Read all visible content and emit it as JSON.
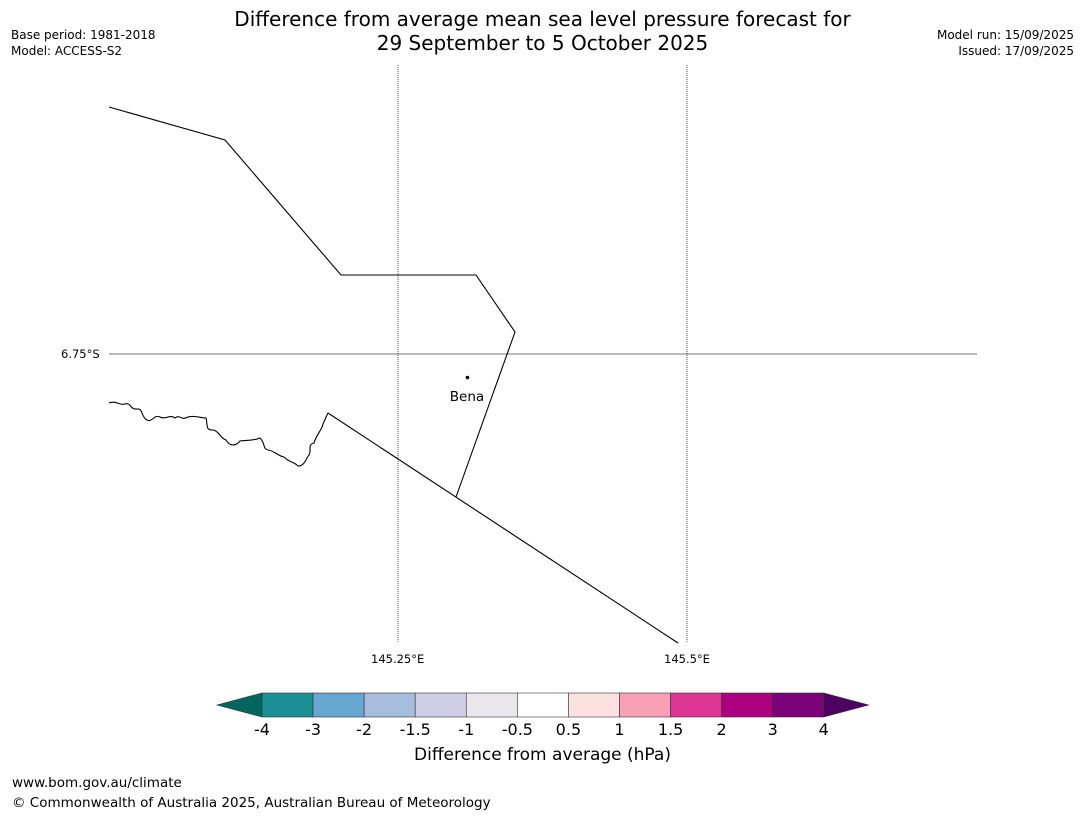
{
  "title_line1": "Difference from average mean sea level pressure forecast for",
  "title_line2": "29 September to 5 October 2025",
  "base_period": "Base period: 1981-2018",
  "model": "Model: ACCESS-S2",
  "model_run": "Model run: 15/09/2025",
  "issued": "Issued: 17/09/2025",
  "map": {
    "lat_label": "6.75°S",
    "lon_labels": [
      "145.25°E",
      "145.5°E"
    ],
    "place": "Bena"
  },
  "colorbar": {
    "label": "Difference from average (hPa)",
    "ticks": [
      "-4",
      "-3",
      "-2",
      "-1.5",
      "-1",
      "-0.5",
      "0.5",
      "1",
      "1.5",
      "2",
      "3",
      "4"
    ],
    "colors": [
      "#00665e",
      "#1a8f94",
      "#66a6d0",
      "#a6bcdc",
      "#d0cde6",
      "#e9e7ec",
      "#ffffff",
      "#fde0e0",
      "#f8a0b8",
      "#dc3594",
      "#ad007e",
      "#7a0177",
      "#4d0062"
    ]
  },
  "footer_url": "www.bom.gov.au/climate",
  "footer_copyright": "© Commonwealth of Australia 2025, Australian Bureau of Meteorology"
}
